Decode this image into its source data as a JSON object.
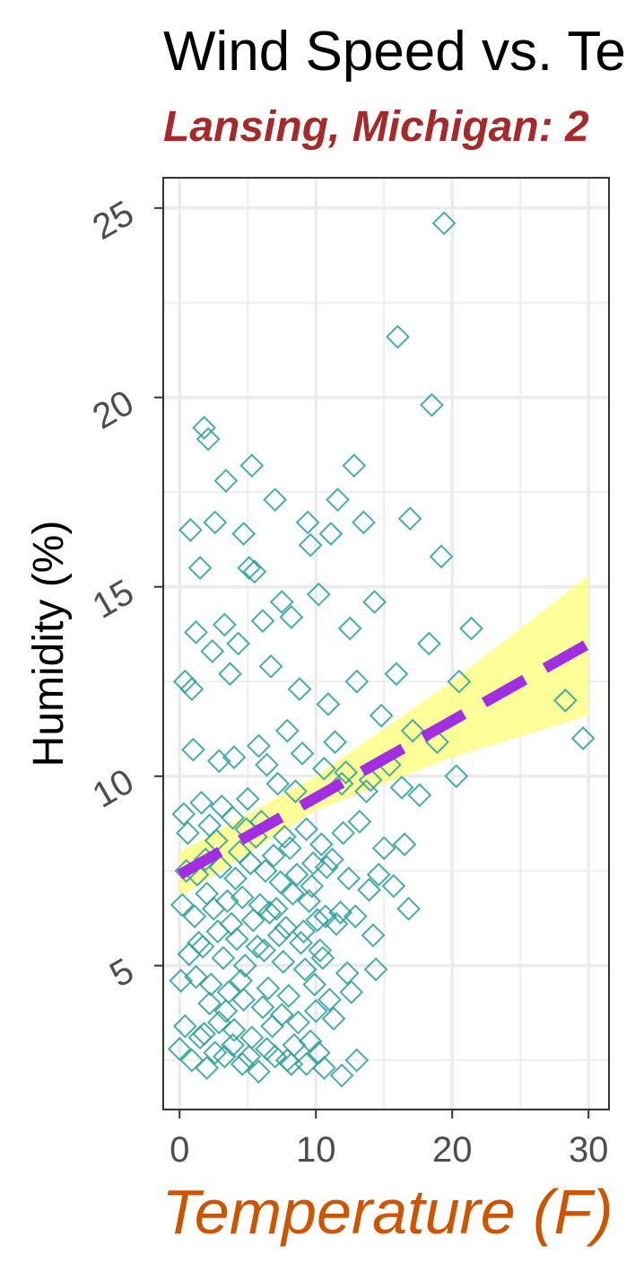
{
  "chart_data": {
    "type": "scatter",
    "title": "Wind Speed vs. Te",
    "subtitle": "Lansing, Michigan: 2",
    "xlabel": "Temperature (F)",
    "ylabel": "Humidity (%)",
    "xlim": [
      -1.2,
      31.5
    ],
    "ylim": [
      1.2,
      25.8
    ],
    "x_ticks": [
      0,
      10,
      20,
      30
    ],
    "x_tick_labels": [
      "0",
      "10",
      "20",
      "30"
    ],
    "y_ticks": [
      5,
      10,
      15,
      20,
      25
    ],
    "y_tick_labels": [
      "5",
      "10",
      "15",
      "20",
      "25"
    ],
    "grid": true,
    "colors": {
      "points": "#2a9d9a",
      "trend": "#a12ee0",
      "band": "#ffff80",
      "subtitle": "#a52a2a",
      "xlabel": "#cc5500",
      "ylabel": "#000000",
      "title": "#000000",
      "ticks": "#4d4d4d",
      "grid": "#ebebeb",
      "frame": "#333333"
    },
    "marker": "open-diamond",
    "trend": {
      "type": "linear",
      "style": "dashed",
      "x": [
        0,
        30
      ],
      "y": [
        7.4,
        13.5
      ],
      "ci_band": {
        "x": [
          0,
          10,
          20,
          30
        ],
        "lower": [
          6.8,
          9.1,
          10.5,
          11.6
        ],
        "upper": [
          8.0,
          10.0,
          12.5,
          15.3
        ]
      }
    },
    "series": [
      {
        "x": [
          19.4,
          16.0,
          18.5,
          1.8,
          2.1,
          5.3,
          12.8,
          3.4,
          7.0,
          11.6,
          13.5,
          16.9,
          2.6,
          9.4,
          0.8,
          4.7,
          11.1,
          9.6,
          1.5,
          19.2,
          5.1,
          5.5,
          7.5,
          14.3,
          10.2,
          21.4,
          1.2,
          3.3,
          18.3,
          12.5,
          8.2,
          6.1,
          4.3,
          2.4,
          15.9,
          20.5,
          13.0,
          0.4,
          0.9,
          3.7,
          6.7,
          28.3,
          29.6,
          8.8,
          10.9,
          14.8,
          17.1,
          11.4,
          7.9,
          5.8,
          4.0,
          1.0,
          2.9,
          6.4,
          9.0,
          12.2,
          14.0,
          15.4,
          16.3,
          17.6,
          18.9,
          20.3,
          13.7,
          11.9,
          10.6,
          8.5,
          7.2,
          5.0,
          3.1,
          1.6,
          0.3,
          0.6,
          2.2,
          3.9,
          4.9,
          6.0,
          7.7,
          9.3,
          10.4,
          12.0,
          13.2,
          15.0,
          16.5,
          2.7,
          4.4,
          5.6,
          6.9,
          8.1,
          9.8,
          11.2,
          0.5,
          1.3,
          1.9,
          3.0,
          4.1,
          5.2,
          6.3,
          7.4,
          8.6,
          9.7,
          10.8,
          12.4,
          13.9,
          14.6,
          15.7,
          16.8,
          2.0,
          3.5,
          4.6,
          5.9,
          7.1,
          8.3,
          9.5,
          10.7,
          11.8,
          0.2,
          1.1,
          2.5,
          3.8,
          5.4,
          6.6,
          7.8,
          9.1,
          10.1,
          11.5,
          12.9,
          14.2,
          1.4,
          2.8,
          4.2,
          5.7,
          7.3,
          8.9,
          10.3,
          0.7,
          1.7,
          3.2,
          4.8,
          6.2,
          7.6,
          9.2,
          10.5,
          12.3,
          14.4,
          0.1,
          1.2,
          2.3,
          3.6,
          4.5,
          6.5,
          8.0,
          9.9,
          11.0,
          12.6,
          2.2,
          3.4,
          4.7,
          6.1,
          7.5,
          8.7,
          10.0,
          11.3,
          0.4,
          1.8,
          2.9,
          4.0,
          5.3,
          6.8,
          8.4,
          9.6,
          0.0,
          1.5,
          2.6,
          3.9,
          5.1,
          6.4,
          7.9,
          9.3,
          10.2,
          0.9,
          2.0,
          3.3,
          4.6,
          5.8,
          7.0,
          8.2,
          10.6,
          11.9,
          13.0
        ],
        "y": [
          24.6,
          21.6,
          19.8,
          19.2,
          18.9,
          18.2,
          18.2,
          17.8,
          17.3,
          17.3,
          16.7,
          16.8,
          16.7,
          16.7,
          16.5,
          16.4,
          16.4,
          16.1,
          15.5,
          15.8,
          15.5,
          15.4,
          14.6,
          14.6,
          14.8,
          13.9,
          13.8,
          14.0,
          13.5,
          13.9,
          14.2,
          14.1,
          13.5,
          13.3,
          12.7,
          12.5,
          12.5,
          12.5,
          12.3,
          12.7,
          12.9,
          12.0,
          11.0,
          12.3,
          11.9,
          11.6,
          11.2,
          10.9,
          11.2,
          10.8,
          10.5,
          10.7,
          10.4,
          10.3,
          10.6,
          10.1,
          9.9,
          10.3,
          9.7,
          9.5,
          10.9,
          10.0,
          9.6,
          9.8,
          10.2,
          9.6,
          9.8,
          9.4,
          9.2,
          9.3,
          9.0,
          8.5,
          8.7,
          8.9,
          8.6,
          8.8,
          8.4,
          8.6,
          8.2,
          8.5,
          8.8,
          8.1,
          8.2,
          8.3,
          8.0,
          8.4,
          7.9,
          8.1,
          7.7,
          7.8,
          7.5,
          7.4,
          7.8,
          7.6,
          7.3,
          7.7,
          7.5,
          7.2,
          7.4,
          7.1,
          7.6,
          7.3,
          7.0,
          7.4,
          7.1,
          6.5,
          6.9,
          6.7,
          6.8,
          6.6,
          6.5,
          6.9,
          6.7,
          6.3,
          6.4,
          6.6,
          6.3,
          6.5,
          6.1,
          6.2,
          6.4,
          6.0,
          5.9,
          6.2,
          6.1,
          6.3,
          5.8,
          5.6,
          5.9,
          5.7,
          5.5,
          5.8,
          5.6,
          5.4,
          5.3,
          5.5,
          5.2,
          5.0,
          5.4,
          5.1,
          4.9,
          5.2,
          4.8,
          4.9,
          4.6,
          4.7,
          4.5,
          4.3,
          4.6,
          4.4,
          4.2,
          4.5,
          4.1,
          4.3,
          4.0,
          3.8,
          4.1,
          3.9,
          3.7,
          3.5,
          3.8,
          3.6,
          3.4,
          3.2,
          3.5,
          3.3,
          3.1,
          3.4,
          2.9,
          3.0,
          2.8,
          3.1,
          2.7,
          2.9,
          2.6,
          2.8,
          2.5,
          2.4,
          2.7,
          2.5,
          2.3,
          2.6,
          2.4,
          2.2,
          2.6,
          2.4,
          2.3,
          2.1,
          2.5
        ]
      }
    ]
  }
}
